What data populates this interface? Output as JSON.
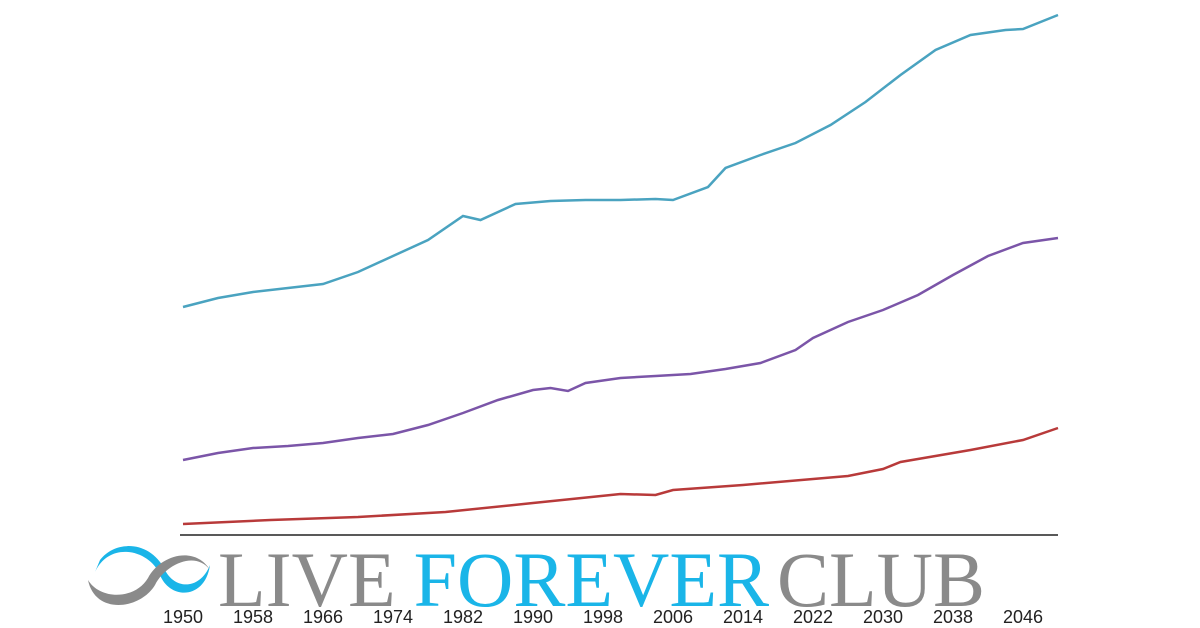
{
  "chart_data": {
    "type": "line",
    "xlim": [
      1950,
      2050
    ],
    "xticks": [
      1950,
      1958,
      1966,
      1974,
      1982,
      1990,
      1998,
      2006,
      2014,
      2022,
      2030,
      2038,
      2046
    ],
    "ylim": [
      0,
      104
    ],
    "series": [
      {
        "color": "#4aa3c0",
        "x": [
          1950,
          1954,
          1958,
          1962,
          1966,
          1970,
          1974,
          1978,
          1982,
          1984,
          1988,
          1992,
          1996,
          2000,
          2004,
          2006,
          2010,
          2012,
          2016,
          2020,
          2024,
          2028,
          2032,
          2036,
          2040,
          2044,
          2046,
          2050
        ],
        "values": [
          45.6,
          47.4,
          48.6,
          49.4,
          50.2,
          52.6,
          55.8,
          59,
          63.8,
          63,
          66.2,
          66.8,
          67,
          67,
          67.2,
          67,
          69.6,
          73.4,
          76,
          78.4,
          82,
          86.6,
          92,
          97,
          100,
          101,
          101.2,
          104
        ]
      },
      {
        "color": "#7b55a8",
        "x": [
          1950,
          1954,
          1958,
          1962,
          1966,
          1970,
          1974,
          1978,
          1982,
          1986,
          1990,
          1992,
          1994,
          1996,
          2000,
          2004,
          2008,
          2012,
          2016,
          2020,
          2022,
          2026,
          2030,
          2034,
          2038,
          2042,
          2046,
          2050
        ],
        "values": [
          15,
          16.4,
          17.4,
          17.8,
          18.4,
          19.4,
          20.2,
          22,
          24.4,
          27,
          29,
          29.4,
          28.8,
          30.4,
          31.4,
          31.8,
          32.2,
          33.2,
          34.4,
          37,
          39.4,
          42.6,
          45,
          48,
          52,
          55.8,
          58.4,
          59.4
        ]
      },
      {
        "color": "#b83a3a",
        "x": [
          1950,
          1960,
          1970,
          1980,
          1990,
          2000,
          2004,
          2006,
          2014,
          2022,
          2026,
          2030,
          2032,
          2040,
          2046,
          2050
        ],
        "values": [
          2.2,
          3,
          3.6,
          4.6,
          6.4,
          8.2,
          8,
          9,
          10,
          11.2,
          11.8,
          13.2,
          14.6,
          17,
          19,
          21.4
        ]
      }
    ]
  },
  "logo": {
    "parts": [
      "LIVE",
      "FOREVER",
      "CLUB"
    ]
  }
}
